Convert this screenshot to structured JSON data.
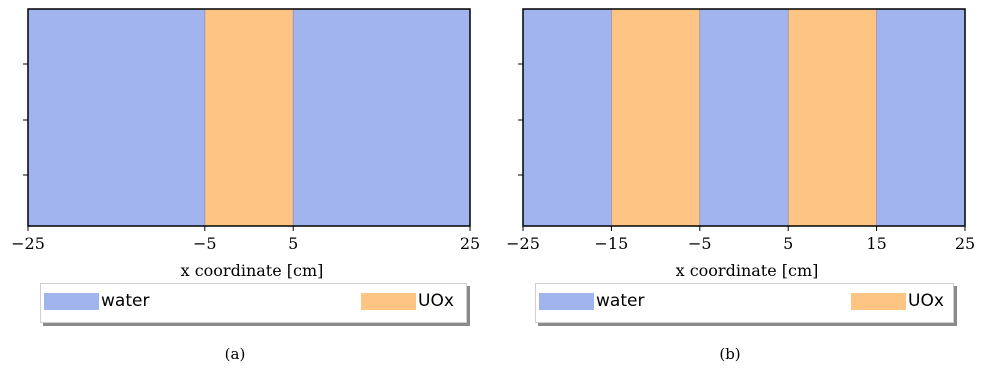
{
  "colors": {
    "water": "#a1b4ee",
    "uox": "#fec483",
    "frame": "#000000"
  },
  "chart_data": [
    {
      "type": "bar",
      "caption": "(a)",
      "xlabel": "x coordinate [cm]",
      "xlim": [
        -25,
        25
      ],
      "xticks": [
        -25,
        -5,
        5,
        25
      ],
      "xtick_labels": [
        "−25",
        "−5",
        "5",
        "25"
      ],
      "regions": [
        {
          "material": "water",
          "x0": -25,
          "x1": -5
        },
        {
          "material": "UOx",
          "x0": -5,
          "x1": 5
        },
        {
          "material": "water",
          "x0": 5,
          "x1": 25
        }
      ],
      "legend": [
        "water",
        "UOx"
      ],
      "legend_position": "below"
    },
    {
      "type": "bar",
      "caption": "(b)",
      "xlabel": "x coordinate [cm]",
      "xlim": [
        -25,
        25
      ],
      "xticks": [
        -25,
        -15,
        -5,
        5,
        15,
        25
      ],
      "xtick_labels": [
        "−25",
        "−15",
        "−5",
        "5",
        "15",
        "25"
      ],
      "regions": [
        {
          "material": "water",
          "x0": -25,
          "x1": -15
        },
        {
          "material": "UOx",
          "x0": -15,
          "x1": -5
        },
        {
          "material": "water",
          "x0": -5,
          "x1": 5
        },
        {
          "material": "UOx",
          "x0": 5,
          "x1": 15
        },
        {
          "material": "water",
          "x0": 15,
          "x1": 25
        }
      ],
      "legend": [
        "water",
        "UOx"
      ],
      "legend_position": "below"
    }
  ]
}
